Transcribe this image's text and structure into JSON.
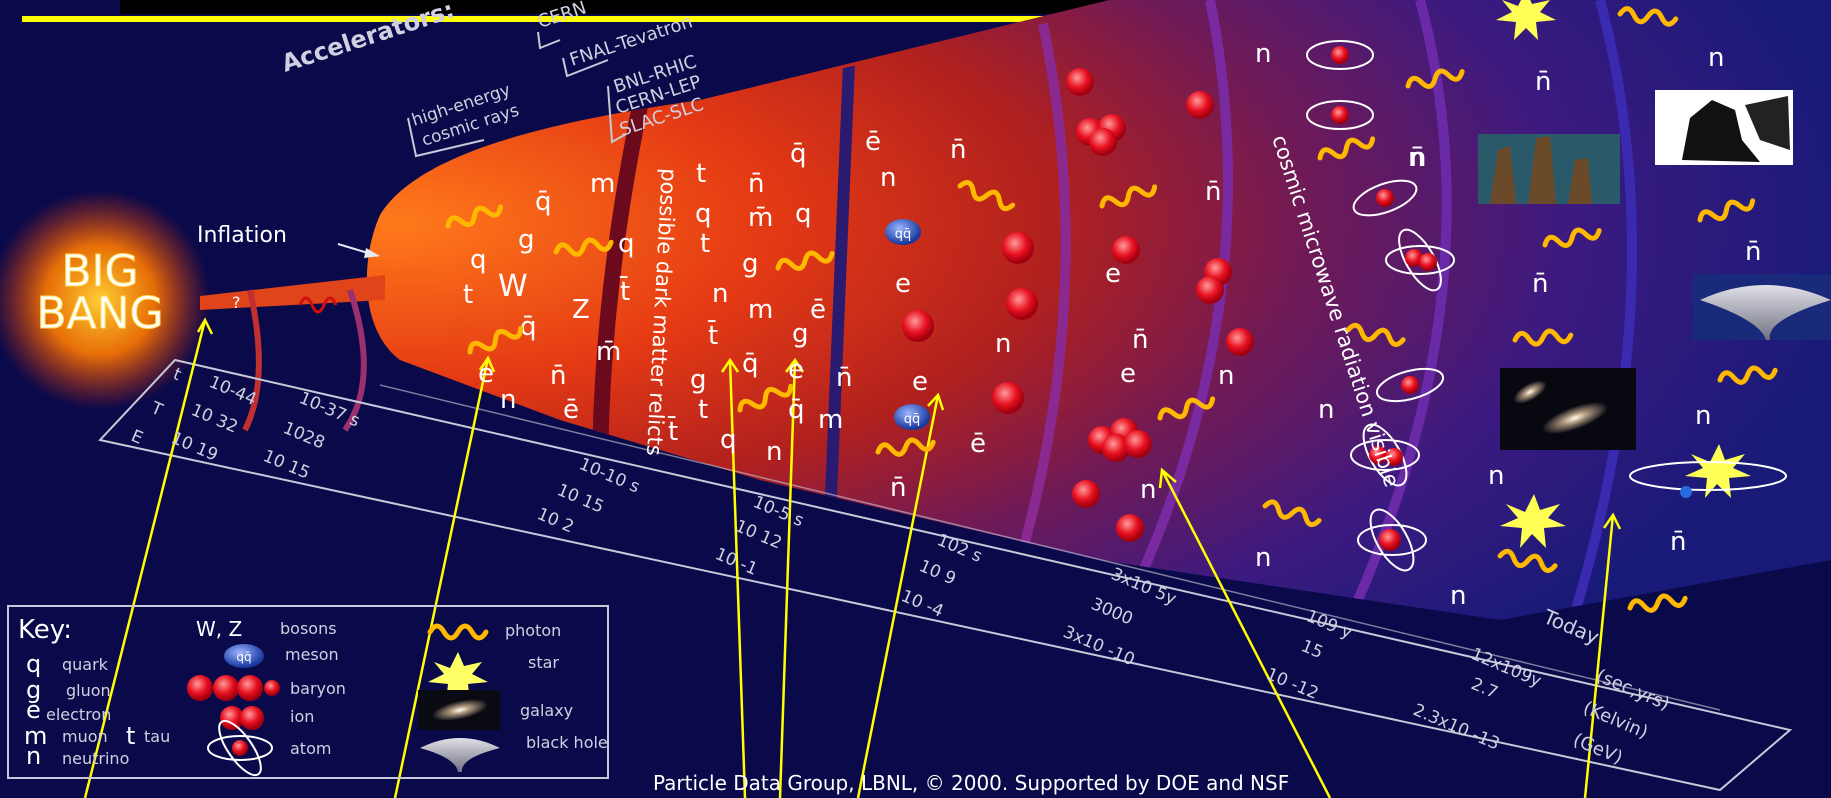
{
  "big_bang": "BIG BANG",
  "inflation": "Inflation",
  "accelerators": {
    "title": "Accelerators:",
    "cern_partial": "CERN",
    "fnal": "FNAL-Tevatron",
    "rhic": "BNL-RHIC",
    "lep": "CERN-LEP",
    "slc": "SLAC-SLC",
    "cosmic1": "high-energy",
    "cosmic2": "cosmic rays"
  },
  "era_labels": {
    "dark_matter": "possible dark matter relicts",
    "cmb": "cosmic microwave radiation visible"
  },
  "timeline": {
    "row_labels": [
      "t",
      "T",
      "E"
    ],
    "t_values": [
      "10-44",
      "10-37 s",
      "10-10 s",
      "10-5 s",
      "102 s",
      "3x10 5y",
      "109 y",
      "12x109y"
    ],
    "T_values": [
      "10 32",
      "1028",
      "10 15",
      "10 12",
      "10 9",
      "3000",
      "15",
      "2.7"
    ],
    "E_values": [
      "10 19",
      "10 15",
      "10 2",
      "10 -1",
      "10 -4",
      "3x10 -10",
      "10 -12",
      "2.3x10 -13"
    ],
    "today": "Today",
    "units": [
      "(sec,yrs)",
      "(Kelvin)",
      "(GeV)"
    ]
  },
  "particles": {
    "q": "q",
    "qbar": "q̄",
    "g": "g",
    "e": "e",
    "ebar": "ē",
    "n": "n",
    "nbar": "n̄",
    "t": "t",
    "tbar": "t̄",
    "m": "m",
    "mbar": "m̄",
    "W": "W",
    "Z": "Z",
    "qq": "qq̄",
    "question": "?"
  },
  "key": {
    "title": "Key:",
    "items": [
      {
        "sym": "q",
        "label": "quark"
      },
      {
        "sym": "g",
        "label": "gluon"
      },
      {
        "sym": "e",
        "label": "electron"
      },
      {
        "sym": "m",
        "label": "muon"
      },
      {
        "sym": "t",
        "label": "tau"
      },
      {
        "sym": "n",
        "label": "neutrino"
      },
      {
        "sym": "W, Z",
        "label": "bosons"
      },
      {
        "sym": "",
        "label": "meson"
      },
      {
        "sym": "",
        "label": "baryon"
      },
      {
        "sym": "",
        "label": "ion"
      },
      {
        "sym": "",
        "label": "atom"
      },
      {
        "sym": "",
        "label": "photon"
      },
      {
        "sym": "",
        "label": "star"
      },
      {
        "sym": "",
        "label": "galaxy"
      },
      {
        "sym": "",
        "label": "black hole"
      }
    ]
  },
  "credit": "Particle Data Group, LBNL, © 2000.    Supported by DOE and NSF",
  "colors": {
    "background": "#0a0a4a",
    "pointer": "#ffff00",
    "photon": "#ffb800"
  }
}
